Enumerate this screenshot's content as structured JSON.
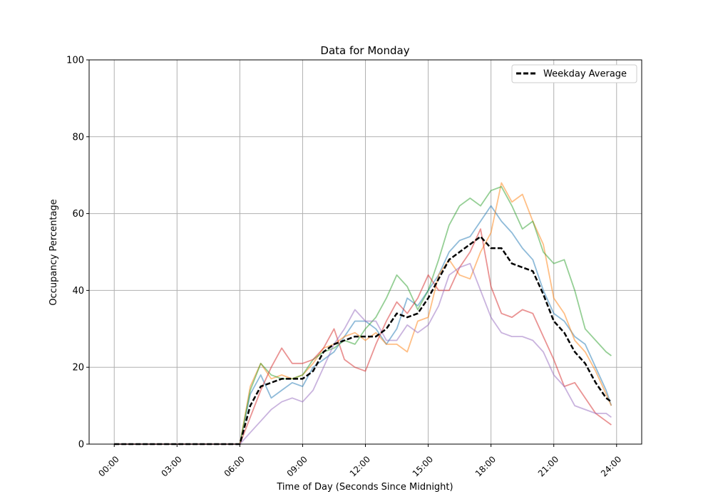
{
  "chart_data": {
    "type": "line",
    "title": "Data for Monday",
    "xlabel": "Time of Day (Seconds Since Midnight)",
    "ylabel": "Occupancy Percentage",
    "ylim": [
      0,
      100
    ],
    "xlim": [
      "-01:12",
      "25:12"
    ],
    "grid": true,
    "legend_placement": "top-right",
    "x_ticks": [
      "00:00",
      "03:00",
      "06:00",
      "09:00",
      "12:00",
      "15:00",
      "18:00",
      "21:00",
      "24:00"
    ],
    "y_ticks": [
      0,
      20,
      40,
      60,
      80,
      100
    ],
    "x": [
      "00:00",
      "05:45",
      "06:00",
      "06:30",
      "07:00",
      "07:30",
      "08:00",
      "08:30",
      "09:00",
      "09:30",
      "10:00",
      "10:30",
      "11:00",
      "11:30",
      "12:00",
      "12:30",
      "13:00",
      "13:30",
      "14:00",
      "14:30",
      "15:00",
      "15:30",
      "16:00",
      "16:30",
      "17:00",
      "17:30",
      "18:00",
      "18:30",
      "19:00",
      "19:30",
      "20:00",
      "20:30",
      "21:00",
      "21:30",
      "22:00",
      "22:30",
      "23:00",
      "23:30",
      "23:45"
    ],
    "series": [
      {
        "color": "#1f77b4",
        "alpha": 0.5,
        "values": [
          0,
          0,
          0,
          13,
          18,
          12,
          14,
          16,
          15,
          20,
          22,
          24,
          28,
          32,
          32,
          30,
          26,
          30,
          38,
          36,
          40,
          44,
          50,
          53,
          54,
          58,
          62,
          58,
          55,
          51,
          48,
          40,
          34,
          32,
          28,
          26,
          20,
          14,
          10
        ]
      },
      {
        "color": "#ff7f0e",
        "alpha": 0.5,
        "values": [
          0,
          0,
          0,
          15,
          21,
          17,
          18,
          17,
          18,
          21,
          25,
          26,
          28,
          29,
          27,
          29,
          26,
          26,
          24,
          32,
          33,
          44,
          48,
          44,
          43,
          50,
          55,
          68,
          63,
          65,
          58,
          52,
          38,
          34,
          27,
          24,
          19,
          13,
          10
        ]
      },
      {
        "color": "#2ca02c",
        "alpha": 0.5,
        "values": [
          0,
          0,
          0,
          14,
          21,
          18,
          17,
          17,
          18,
          22,
          24,
          25,
          27,
          26,
          30,
          33,
          38,
          44,
          41,
          35,
          40,
          48,
          57,
          62,
          64,
          62,
          66,
          67,
          62,
          56,
          58,
          50,
          47,
          48,
          40,
          30,
          27,
          24,
          23
        ]
      },
      {
        "color": "#d62728",
        "alpha": 0.5,
        "values": [
          0,
          0,
          0,
          7,
          14,
          20,
          25,
          21,
          21,
          22,
          25,
          30,
          22,
          20,
          19,
          26,
          32,
          37,
          34,
          38,
          44,
          40,
          40,
          46,
          50,
          56,
          41,
          34,
          33,
          35,
          34,
          28,
          22,
          15,
          16,
          12,
          8,
          6,
          5
        ]
      },
      {
        "color": "#9467bd",
        "alpha": 0.5,
        "values": [
          0,
          0,
          0,
          3,
          6,
          9,
          11,
          12,
          11,
          14,
          20,
          26,
          30,
          35,
          32,
          32,
          27,
          27,
          31,
          29,
          31,
          36,
          44,
          46,
          47,
          40,
          33,
          29,
          28,
          28,
          27,
          24,
          18,
          15,
          10,
          9,
          8,
          8,
          7
        ]
      },
      {
        "name": "Weekday Average",
        "color": "#000000",
        "style": "dashed",
        "values": [
          0,
          0,
          0,
          10,
          15,
          16,
          17,
          17,
          17,
          19,
          24,
          26,
          27,
          28,
          28,
          28,
          30,
          34,
          33,
          34,
          38,
          43,
          48,
          50,
          52,
          54,
          51,
          51,
          47,
          46,
          45,
          39,
          32,
          29,
          24,
          21,
          16,
          12,
          11
        ]
      }
    ]
  }
}
